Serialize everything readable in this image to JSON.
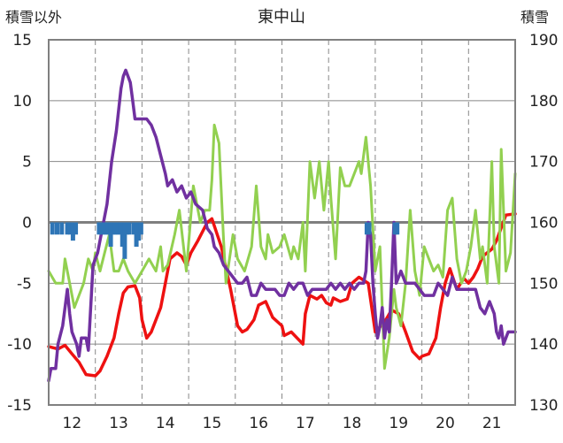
{
  "chart_data": {
    "type": "line",
    "title": "東中山",
    "left_axis": {
      "label": "積雪以外",
      "ylim": [
        -15,
        15
      ],
      "ticks": [
        15,
        10,
        5,
        0,
        -5,
        -10,
        -15
      ]
    },
    "right_axis": {
      "label": "積雪",
      "ylim": [
        130,
        190
      ],
      "ticks": [
        190,
        180,
        170,
        160,
        150,
        140,
        130
      ]
    },
    "x_axis": {
      "xlim": [
        11.5,
        21.5
      ],
      "ticks": [
        12,
        13,
        14,
        15,
        16,
        17,
        18,
        19,
        20,
        21
      ]
    },
    "grid": true,
    "colors": {
      "red": "#ee1111",
      "green": "#92d050",
      "purple": "#7030a0",
      "blue": "#2e75b6",
      "grid": "#888888",
      "frame": "#808080"
    },
    "series": [
      {
        "color": "red",
        "axis": "left",
        "style": "line",
        "x": [
          11.5,
          11.7,
          11.85,
          12.0,
          12.15,
          12.3,
          12.5,
          12.6,
          12.75,
          12.9,
          13.0,
          13.1,
          13.2,
          13.35,
          13.45,
          13.5,
          13.6,
          13.7,
          13.9,
          14.0,
          14.1,
          14.25,
          14.35,
          14.45,
          14.55,
          14.7,
          14.9,
          15.0,
          15.2,
          15.4,
          15.55,
          15.65,
          15.75,
          15.9,
          16.0,
          16.15,
          16.3,
          16.5,
          16.55,
          16.7,
          16.9,
          16.95,
          17.0,
          17.1,
          17.25,
          17.35,
          17.45,
          17.55,
          17.6,
          17.75,
          17.9,
          18.0,
          18.15,
          18.35,
          18.5,
          18.55,
          18.7,
          18.85,
          19.0,
          19.15,
          19.3,
          19.45,
          19.5,
          19.65,
          19.8,
          19.9,
          20.0,
          20.1,
          20.25,
          20.4,
          20.5,
          20.6,
          20.7,
          20.8,
          20.9,
          21.0,
          21.1,
          21.3,
          21.5
        ],
        "y": [
          -10.2,
          -10.4,
          -10.1,
          -10.8,
          -11.5,
          -12.5,
          -12.6,
          -12.2,
          -11.0,
          -9.5,
          -7.5,
          -5.8,
          -5.3,
          -5.2,
          -6.2,
          -8.0,
          -9.5,
          -9.0,
          -7.0,
          -5.0,
          -3.0,
          -2.5,
          -2.8,
          -3.5,
          -2.5,
          -1.5,
          0.0,
          0.3,
          -2.0,
          -5.5,
          -8.5,
          -9.0,
          -8.8,
          -8.0,
          -6.8,
          -6.5,
          -7.8,
          -8.5,
          -9.3,
          -9.0,
          -9.8,
          -10.0,
          -7.5,
          -6.0,
          -6.3,
          -6.0,
          -6.6,
          -6.8,
          -6.2,
          -6.5,
          -6.3,
          -5.0,
          -4.5,
          -5.0,
          -9.0,
          -8.8,
          -8.2,
          -7.2,
          -7.5,
          -9.0,
          -10.6,
          -11.2,
          -11.0,
          -10.8,
          -9.5,
          -7.0,
          -5.0,
          -3.8,
          -5.5,
          -4.6,
          -5.0,
          -4.5,
          -3.8,
          -2.8,
          -2.5,
          -2.2,
          -1.5,
          0.6,
          0.7
        ]
      },
      {
        "color": "green",
        "axis": "left",
        "style": "line",
        "x": [
          11.5,
          11.65,
          11.8,
          11.85,
          11.95,
          12.05,
          12.1,
          12.25,
          12.35,
          12.45,
          12.5,
          12.6,
          12.7,
          12.8,
          12.9,
          13.0,
          13.1,
          13.2,
          13.35,
          13.5,
          13.65,
          13.8,
          13.9,
          13.95,
          14.05,
          14.2,
          14.3,
          14.45,
          14.6,
          14.75,
          14.85,
          14.95,
          15.0,
          15.05,
          15.15,
          15.25,
          15.3,
          15.45,
          15.55,
          15.7,
          15.85,
          15.95,
          16.05,
          16.15,
          16.2,
          16.3,
          16.45,
          16.55,
          16.7,
          16.75,
          16.85,
          16.95,
          17.0,
          17.1,
          17.2,
          17.3,
          17.4,
          17.5,
          17.55,
          17.65,
          17.75,
          17.85,
          17.95,
          18.05,
          18.15,
          18.2,
          18.3,
          18.4,
          18.5,
          18.6,
          18.7,
          18.8,
          18.9,
          18.95,
          19.05,
          19.15,
          19.25,
          19.35,
          19.45,
          19.55,
          19.65,
          19.75,
          19.85,
          19.95,
          20.05,
          20.15,
          20.25,
          20.35,
          20.45,
          20.55,
          20.65,
          20.75,
          20.8,
          20.9,
          21.0,
          21.05,
          21.15,
          21.2,
          21.3,
          21.4,
          21.5
        ],
        "y": [
          -4.0,
          -5.0,
          -5.0,
          -3.0,
          -5.0,
          -7.0,
          -6.5,
          -5.0,
          -3.0,
          -4.0,
          -2.5,
          -4.0,
          -2.5,
          -1.0,
          -4.0,
          -4.0,
          -3.0,
          -4.0,
          -5.0,
          -4.0,
          -3.0,
          -4.0,
          -2.0,
          -4.0,
          -3.5,
          -1.0,
          1.0,
          -4.0,
          3.0,
          0.0,
          1.0,
          1.0,
          3.5,
          8.0,
          6.5,
          -1.5,
          -5.0,
          -1.0,
          -3.0,
          -4.0,
          -2.0,
          3.0,
          -2.0,
          -3.0,
          -1.0,
          -2.5,
          -2.0,
          -1.0,
          -3.0,
          -2.0,
          -3.0,
          0.0,
          -4.0,
          5.0,
          2.0,
          5.0,
          1.0,
          5.0,
          2.0,
          -3.0,
          4.5,
          3.0,
          3.0,
          4.0,
          5.0,
          4.0,
          7.0,
          3.0,
          -4.0,
          -2.0,
          -12.0,
          -9.5,
          -5.5,
          -7.0,
          -8.5,
          -5.0,
          1.0,
          -4.0,
          -6.0,
          -2.0,
          -3.0,
          -4.0,
          -3.5,
          -4.5,
          1.0,
          2.0,
          -3.0,
          -5.0,
          -4.0,
          -2.0,
          1.0,
          -3.0,
          -2.0,
          -5.0,
          5.0,
          -2.0,
          -5.0,
          6.0,
          -4.0,
          -2.5,
          4.0
        ]
      },
      {
        "color": "purple",
        "axis": "right",
        "style": "line",
        "x": [
          11.5,
          11.55,
          11.6,
          11.65,
          11.7,
          11.8,
          11.9,
          11.95,
          12.0,
          12.1,
          12.15,
          12.2,
          12.3,
          12.35,
          12.45,
          12.55,
          12.65,
          12.75,
          12.85,
          12.95,
          13.05,
          13.1,
          13.15,
          13.2,
          13.25,
          13.3,
          13.35,
          13.45,
          13.5,
          13.6,
          13.7,
          13.8,
          13.9,
          14.0,
          14.05,
          14.15,
          14.25,
          14.35,
          14.45,
          14.55,
          14.65,
          14.8,
          14.9,
          15.0,
          15.05,
          15.15,
          15.25,
          15.35,
          15.45,
          15.55,
          15.65,
          15.75,
          15.85,
          15.95,
          16.05,
          16.15,
          16.25,
          16.35,
          16.45,
          16.55,
          16.65,
          16.75,
          16.85,
          16.95,
          17.05,
          17.15,
          17.25,
          17.35,
          17.45,
          17.55,
          17.65,
          17.75,
          17.85,
          17.95,
          18.05,
          18.15,
          18.25,
          18.3,
          18.35,
          18.4,
          18.45,
          18.5,
          18.55,
          18.6,
          18.65,
          18.7,
          18.75,
          18.8,
          18.85,
          18.9,
          18.95,
          19.05,
          19.15,
          19.25,
          19.35,
          19.45,
          19.55,
          19.65,
          19.75,
          19.85,
          19.95,
          20.05,
          20.15,
          20.25,
          20.35,
          20.45,
          20.55,
          20.65,
          20.75,
          20.85,
          20.95,
          21.05,
          21.1,
          21.15,
          21.2,
          21.25,
          21.35,
          21.5
        ],
        "y": [
          134.0,
          136.0,
          136.0,
          136.0,
          140.0,
          143.0,
          149.0,
          145.0,
          142.0,
          140.0,
          138.0,
          141.0,
          141.0,
          139.0,
          153.0,
          155.0,
          159.0,
          163.0,
          170.0,
          175.0,
          182.0,
          184.0,
          185.0,
          184.0,
          183.0,
          180.0,
          177.0,
          177.0,
          177.0,
          177.0,
          176.0,
          174.0,
          171.0,
          168.0,
          166.0,
          167.0,
          165.0,
          166.0,
          164.0,
          165.0,
          163.0,
          162.0,
          159.0,
          158.0,
          156.0,
          155.0,
          153.0,
          152.0,
          151.0,
          150.0,
          150.0,
          151.0,
          148.0,
          148.0,
          150.0,
          149.0,
          149.0,
          149.0,
          148.0,
          148.0,
          150.0,
          149.0,
          150.0,
          150.0,
          148.0,
          149.0,
          149.0,
          149.0,
          149.0,
          150.0,
          149.0,
          150.0,
          149.0,
          150.0,
          149.0,
          150.0,
          150.0,
          152.0,
          160.0,
          158.0,
          150.0,
          145.0,
          141.0,
          143.0,
          146.0,
          141.0,
          144.0,
          142.0,
          150.0,
          160.0,
          150.0,
          152.0,
          150.0,
          150.0,
          150.0,
          149.0,
          148.0,
          148.0,
          148.0,
          150.0,
          149.0,
          148.0,
          151.0,
          149.0,
          149.0,
          149.0,
          149.0,
          149.0,
          146.0,
          145.0,
          147.0,
          145.0,
          142.0,
          141.0,
          143.0,
          140.0,
          142.0,
          142.0
        ]
      },
      {
        "color": "blue",
        "axis": "left",
        "style": "bar",
        "x": [
          11.58,
          11.68,
          11.78,
          11.9,
          11.96,
          12.02,
          12.08,
          12.58,
          12.63,
          12.68,
          12.73,
          12.78,
          12.83,
          12.88,
          12.93,
          12.98,
          13.03,
          13.08,
          13.13,
          13.18,
          13.23,
          13.33,
          13.38,
          13.43,
          13.48,
          18.32,
          18.37,
          18.92,
          18.97
        ],
        "y": [
          -1.0,
          -1.0,
          -1.0,
          -1.0,
          -1.0,
          -1.5,
          -1.0,
          -1.0,
          -1.0,
          -1.0,
          -1.0,
          -1.0,
          -2.0,
          -1.0,
          -1.0,
          -1.0,
          -1.0,
          -2.0,
          -3.0,
          -1.0,
          -1.0,
          -1.0,
          -2.0,
          -1.5,
          -1.0,
          -1.0,
          -1.0,
          -1.0,
          -1.0
        ]
      }
    ]
  }
}
